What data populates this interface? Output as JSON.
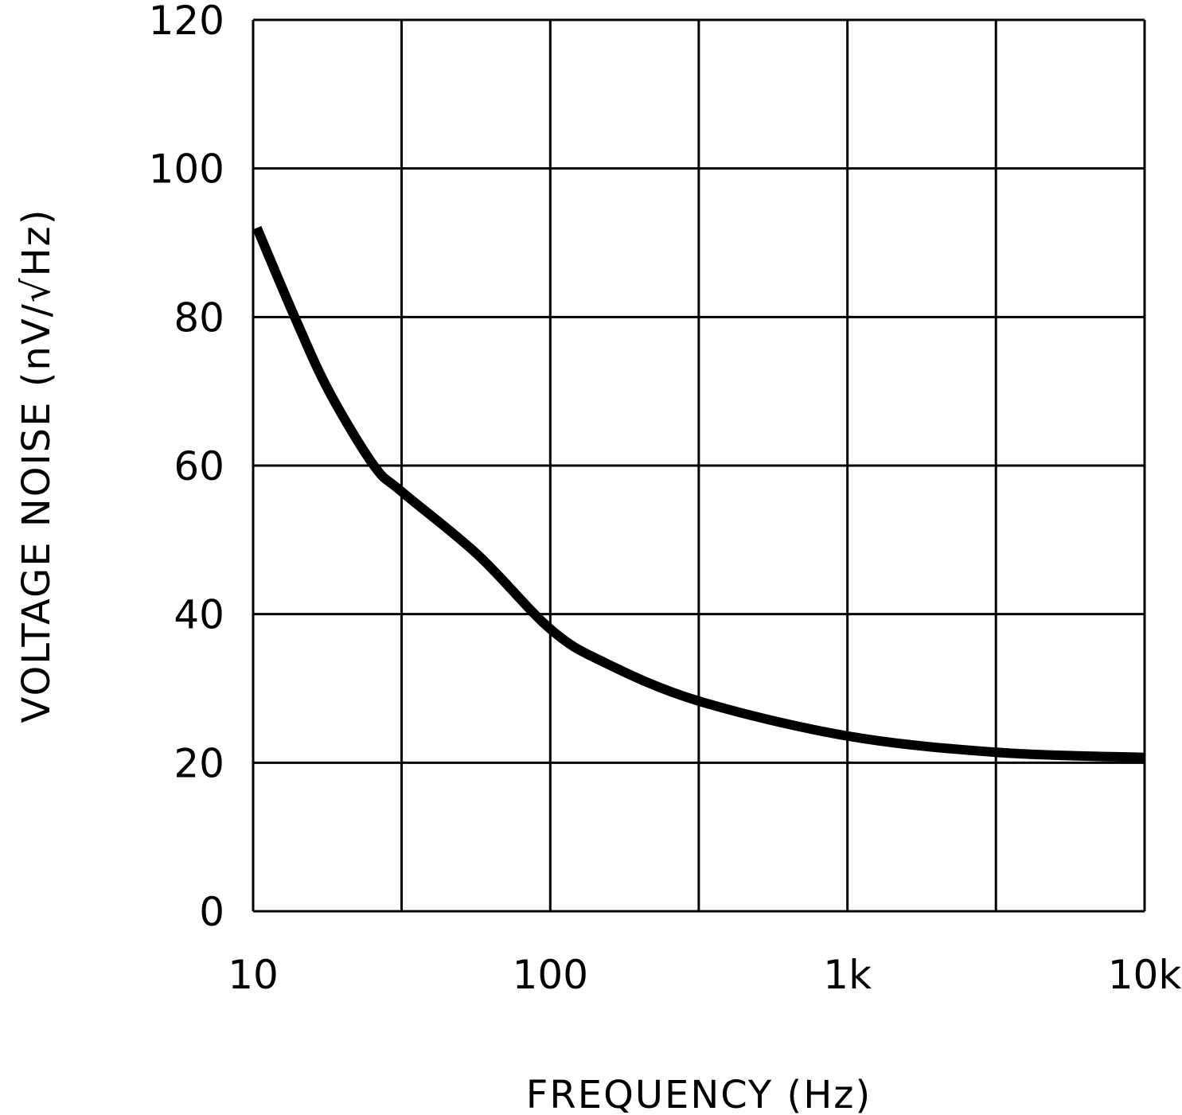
{
  "chart_data": {
    "type": "line",
    "title": "",
    "xlabel": "FREQUENCY (Hz)",
    "ylabel": "VOLTAGE NOISE (nV/√Hz)",
    "x_scale": "log",
    "xlim": [
      10,
      10000
    ],
    "ylim": [
      0,
      120
    ],
    "grid": true,
    "x_ticks": [
      {
        "value": 10,
        "label": "10"
      },
      {
        "value": 100,
        "label": "100"
      },
      {
        "value": 1000,
        "label": "1k"
      },
      {
        "value": 10000,
        "label": "10k"
      }
    ],
    "x_gridlines": [
      10,
      31.6,
      100,
      316,
      1000,
      3160,
      10000
    ],
    "y_ticks": [
      {
        "value": 0,
        "label": "0"
      },
      {
        "value": 20,
        "label": "20"
      },
      {
        "value": 40,
        "label": "40"
      },
      {
        "value": 60,
        "label": "60"
      },
      {
        "value": 80,
        "label": "80"
      },
      {
        "value": 100,
        "label": "100"
      },
      {
        "value": 120,
        "label": "120"
      }
    ],
    "series": [
      {
        "color": "#000000",
        "x": [
          10.3,
          13.8,
          18,
          25.5,
          31.6,
          57,
          100,
          152,
          316,
          1000,
          3160,
          10000
        ],
        "y": [
          92,
          80,
          70,
          60,
          56.5,
          48,
          38,
          33.5,
          28.3,
          23.6,
          21.4,
          20.7
        ]
      }
    ]
  }
}
